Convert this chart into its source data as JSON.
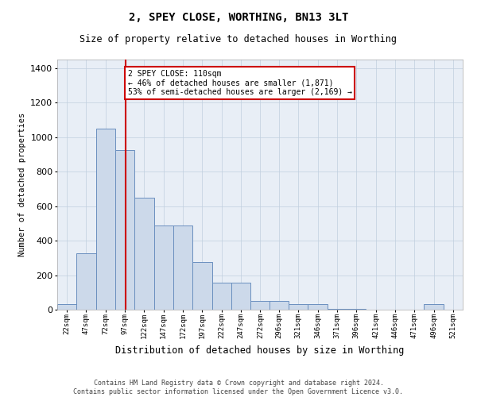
{
  "title": "2, SPEY CLOSE, WORTHING, BN13 3LT",
  "subtitle": "Size of property relative to detached houses in Worthing",
  "xlabel": "Distribution of detached houses by size in Worthing",
  "ylabel": "Number of detached properties",
  "footer_line1": "Contains HM Land Registry data © Crown copyright and database right 2024.",
  "footer_line2": "Contains public sector information licensed under the Open Government Licence v3.0.",
  "bar_color": "#ccd9ea",
  "bar_edge_color": "#6a8fbf",
  "grid_color": "#c0cfdf",
  "background_color": "#e8eef6",
  "annotation_text": "2 SPEY CLOSE: 110sqm\n← 46% of detached houses are smaller (1,871)\n53% of semi-detached houses are larger (2,169) →",
  "vline_color": "#cc0000",
  "ylim": [
    0,
    1450
  ],
  "yticks": [
    0,
    200,
    400,
    600,
    800,
    1000,
    1200,
    1400
  ],
  "bin_starts": [
    22,
    47,
    72,
    97,
    122,
    147,
    172,
    197,
    222,
    247,
    272,
    296,
    321,
    346,
    371,
    396,
    421,
    446,
    471,
    496,
    521
  ],
  "bar_values": [
    30,
    325,
    1050,
    925,
    650,
    490,
    490,
    275,
    155,
    155,
    50,
    50,
    30,
    30,
    5,
    5,
    0,
    0,
    0,
    30,
    0
  ],
  "bin_width": 25,
  "vline_x": 110,
  "xlim_left": 22,
  "xlim_right": 546
}
